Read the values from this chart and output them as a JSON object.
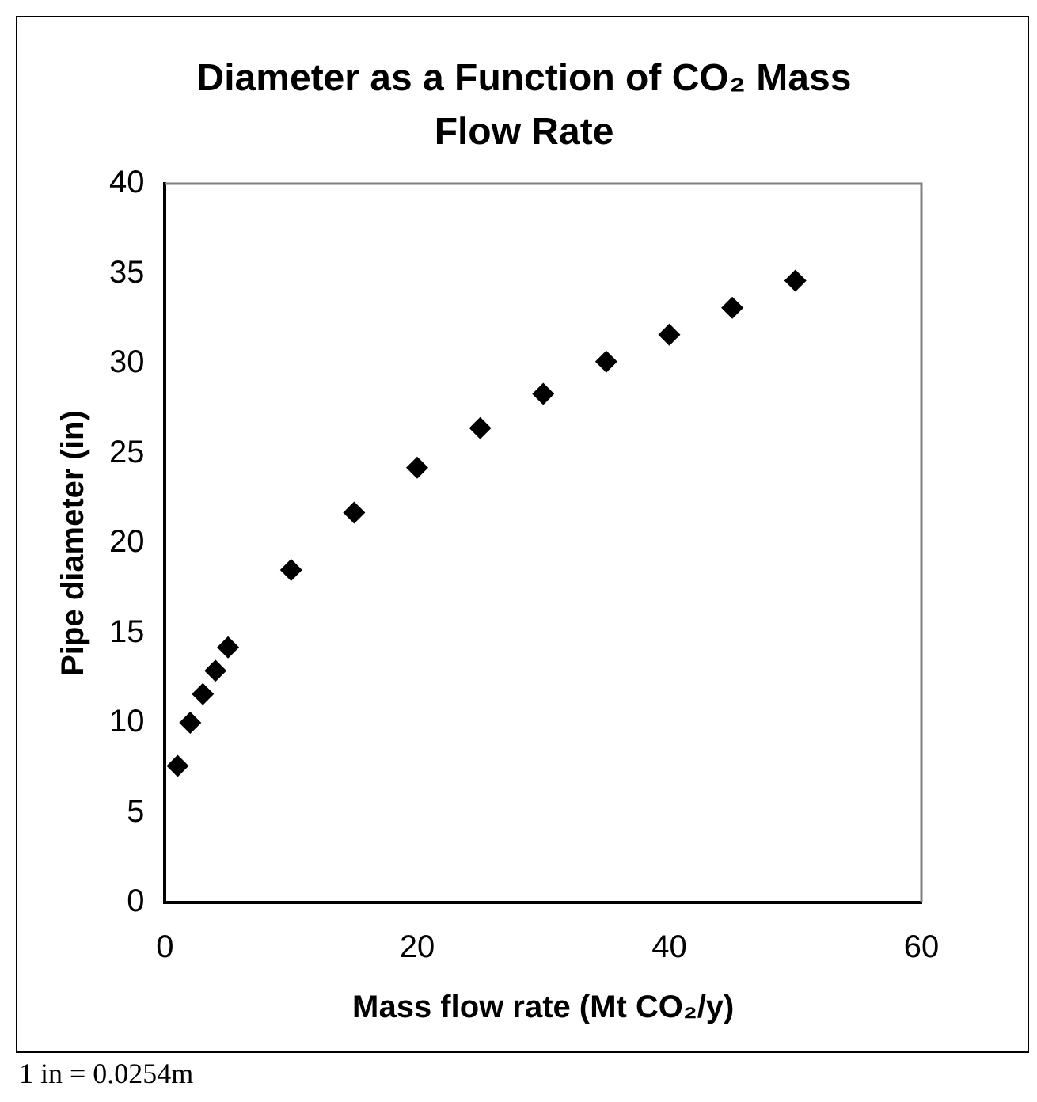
{
  "chart_data": {
    "type": "scatter",
    "title": "Diameter as a Function of CO₂ Mass Flow Rate",
    "xlabel": "Mass flow rate (Mt CO₂/y)",
    "ylabel": "Pipe diameter (in)",
    "annotations": [
      "1 in = 0.0254m"
    ],
    "x": [
      1,
      2,
      3,
      4,
      5,
      10,
      15,
      20,
      25,
      30,
      35,
      40,
      45,
      50
    ],
    "series": [
      {
        "color": "#000000",
        "values": [
          7.6,
          10.0,
          11.6,
          12.9,
          14.2,
          18.5,
          21.7,
          24.2,
          26.4,
          28.3,
          30.1,
          31.6,
          33.1,
          34.6
        ]
      }
    ],
    "xlim": [
      0,
      60
    ],
    "xticks": [
      0,
      20,
      40,
      60
    ],
    "ylim": [
      0,
      40
    ],
    "yticks": [
      0,
      5,
      10,
      15,
      20,
      25,
      30,
      35,
      40
    ],
    "grid": false,
    "legend": false,
    "marker": "diamond"
  }
}
